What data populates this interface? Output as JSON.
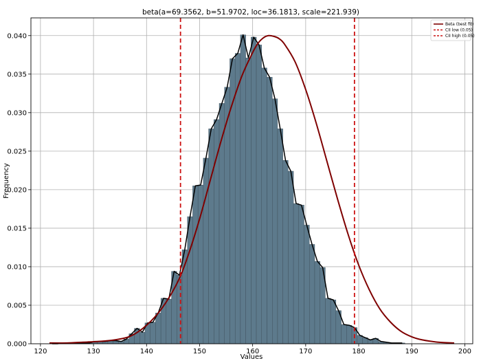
{
  "chart_data": {
    "type": "bar",
    "title": "beta(a=69.3562, b=51.9702, loc=36.1813, scale=221.939)",
    "xlabel": "Values",
    "ylabel": "Frequency",
    "xlim": [
      118.2,
      201.5
    ],
    "ylim": [
      0,
      0.0423
    ],
    "xticks": [
      120,
      130,
      140,
      150,
      160,
      170,
      180,
      190,
      200
    ],
    "yticks": [
      0.0,
      0.005,
      0.01,
      0.015,
      0.02,
      0.025,
      0.03,
      0.035,
      0.04
    ],
    "xtick_labels": [
      "120",
      "130",
      "140",
      "150",
      "160",
      "170",
      "180",
      "190",
      "200"
    ],
    "ytick_labels": [
      "0.000",
      "0.005",
      "0.010",
      "0.015",
      "0.020",
      "0.025",
      "0.030",
      "0.035",
      "0.040"
    ],
    "grid": true,
    "histogram": {
      "bin_start": 121.7,
      "bin_width": 1.0,
      "values": [
        0.0,
        0.0,
        0.0001,
        0.0001,
        0.0001,
        0.0001,
        0.0001,
        0.0001,
        0.0003,
        0.0003,
        0.0003,
        0.0004,
        0.0004,
        0.0003,
        0.0006,
        0.0013,
        0.002,
        0.0015,
        0.0027,
        0.0028,
        0.004,
        0.0059,
        0.0058,
        0.0094,
        0.0089,
        0.0122,
        0.0165,
        0.0205,
        0.0206,
        0.0241,
        0.0279,
        0.0291,
        0.0312,
        0.0333,
        0.037,
        0.0377,
        0.0401,
        0.0371,
        0.0398,
        0.0388,
        0.0358,
        0.0346,
        0.0318,
        0.0279,
        0.0238,
        0.0224,
        0.0182,
        0.018,
        0.0154,
        0.0129,
        0.0107,
        0.0099,
        0.0059,
        0.0057,
        0.0043,
        0.0025,
        0.0024,
        0.0021,
        0.0011,
        0.0008,
        0.0005,
        0.0007,
        0.0003,
        0.0002,
        0.0001,
        0.0001,
        0.0001
      ],
      "color": "#5d7a8c",
      "edge_color": "#3a4a55"
    },
    "series": [
      {
        "name": "Beta (best fit)",
        "kind": "line",
        "color": "#7f0000",
        "style": "solid",
        "x": [
          121.7,
          125,
          128,
          131,
          134,
          137,
          140,
          143,
          146,
          148,
          150,
          152,
          154,
          156,
          158,
          160,
          161,
          162,
          163,
          164,
          165,
          166,
          168,
          170,
          172,
          174,
          176,
          178,
          180,
          182,
          184,
          186,
          188,
          190,
          192,
          195,
          198
        ],
        "y": [
          0.0001,
          0.0001,
          0.0002,
          0.0003,
          0.0005,
          0.001,
          0.0024,
          0.0047,
          0.0082,
          0.0118,
          0.0162,
          0.0212,
          0.0262,
          0.0308,
          0.0348,
          0.0378,
          0.039,
          0.0397,
          0.04,
          0.0399,
          0.0396,
          0.0389,
          0.0366,
          0.033,
          0.0286,
          0.0237,
          0.0188,
          0.0142,
          0.0102,
          0.007,
          0.0045,
          0.0028,
          0.0016,
          0.0009,
          0.0005,
          0.0002,
          0.0001
        ]
      },
      {
        "name": "CII low (0.05)",
        "kind": "vline",
        "x_value": 146.4,
        "color": "#cc1111",
        "style": "dashed"
      },
      {
        "name": "CII high (0.05)",
        "kind": "vline",
        "x_value": 179.2,
        "color": "#cc1111",
        "style": "dashed"
      }
    ],
    "empirical_line": {
      "color": "#000000",
      "style": "solid"
    },
    "legend": "top-right"
  }
}
